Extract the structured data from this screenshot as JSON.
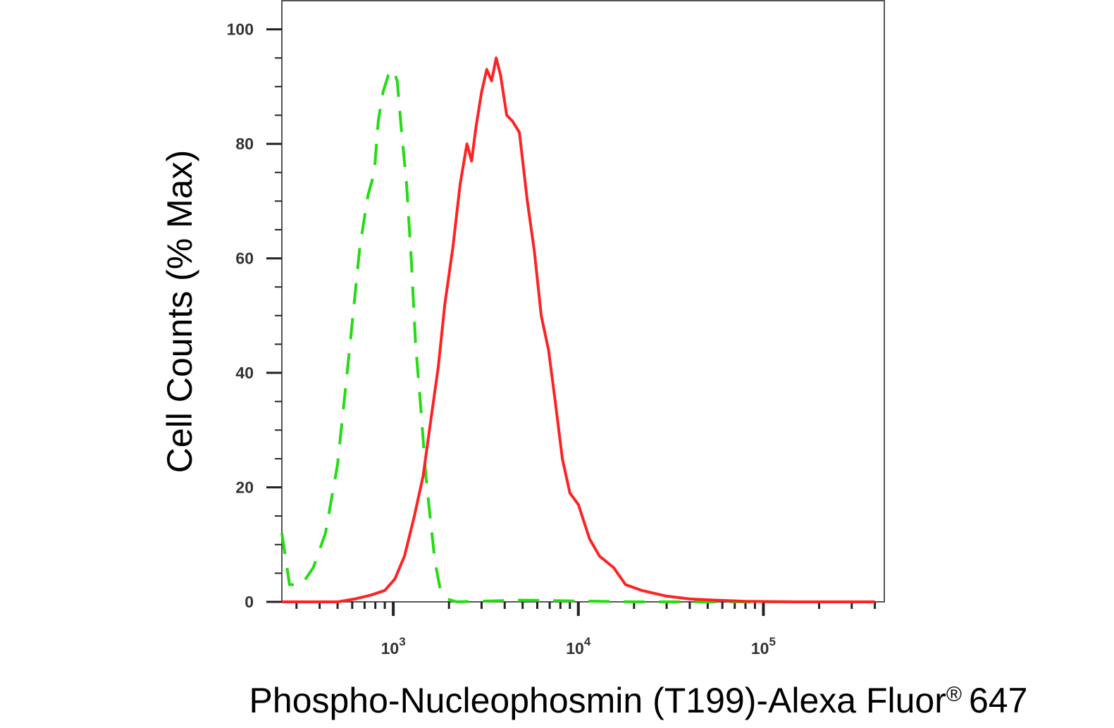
{
  "chart_data": {
    "type": "line",
    "xlabel": "Phospho-Nucleophosmin (T199)-Alexa Fluor",
    "xlabel_mark": "®",
    "xlabel_tail": "647",
    "ylabel": "Cell Counts (% Max)",
    "x_scale": "log",
    "xlim": [
      250,
      450000
    ],
    "ylim": [
      0,
      105
    ],
    "y_ticks": [
      0,
      20,
      40,
      60,
      80,
      100
    ],
    "y_tick_labels": [
      "0",
      "20",
      "40",
      "60",
      "80",
      "100"
    ],
    "x_ticks": [
      1000,
      10000,
      100000
    ],
    "x_tick_labels": [
      {
        "base": "10",
        "exp": "3"
      },
      {
        "base": "10",
        "exp": "4"
      },
      {
        "base": "10",
        "exp": "5"
      }
    ],
    "grid": false,
    "series": [
      {
        "style": "dashed",
        "color": "#22dd11",
        "points": [
          [
            250,
            12
          ],
          [
            275,
            3
          ],
          [
            320,
            3
          ],
          [
            370,
            6
          ],
          [
            430,
            12
          ],
          [
            500,
            24
          ],
          [
            580,
            44
          ],
          [
            660,
            62
          ],
          [
            730,
            71
          ],
          [
            790,
            75
          ],
          [
            830,
            84
          ],
          [
            880,
            89
          ],
          [
            940,
            92
          ],
          [
            1000,
            93
          ],
          [
            1050,
            91
          ],
          [
            1110,
            82
          ],
          [
            1180,
            73
          ],
          [
            1250,
            60
          ],
          [
            1320,
            45
          ],
          [
            1400,
            35
          ],
          [
            1500,
            22
          ],
          [
            1580,
            15
          ],
          [
            1680,
            7
          ],
          [
            1800,
            2
          ],
          [
            1950,
            0.5
          ],
          [
            2200,
            0
          ],
          [
            5000,
            0.3
          ],
          [
            20000,
            0
          ],
          [
            100000,
            0
          ],
          [
            400000,
            0
          ]
        ]
      },
      {
        "style": "solid",
        "color": "#ff2222",
        "points": [
          [
            250,
            0
          ],
          [
            500,
            0
          ],
          [
            620,
            0.5
          ],
          [
            760,
            1.2
          ],
          [
            900,
            2
          ],
          [
            1020,
            4
          ],
          [
            1150,
            8
          ],
          [
            1300,
            15
          ],
          [
            1450,
            22
          ],
          [
            1600,
            32
          ],
          [
            1750,
            41
          ],
          [
            1900,
            52
          ],
          [
            2100,
            62
          ],
          [
            2300,
            73
          ],
          [
            2500,
            80
          ],
          [
            2650,
            77
          ],
          [
            2800,
            83
          ],
          [
            3000,
            89
          ],
          [
            3200,
            93
          ],
          [
            3400,
            91
          ],
          [
            3600,
            95
          ],
          [
            3800,
            92
          ],
          [
            4100,
            85
          ],
          [
            4400,
            84
          ],
          [
            4800,
            82
          ],
          [
            5300,
            70
          ],
          [
            5800,
            61
          ],
          [
            6300,
            50
          ],
          [
            6900,
            44
          ],
          [
            7500,
            35
          ],
          [
            8200,
            25
          ],
          [
            9000,
            19
          ],
          [
            10000,
            17
          ],
          [
            11500,
            11
          ],
          [
            13000,
            8
          ],
          [
            15500,
            6
          ],
          [
            18000,
            3
          ],
          [
            22000,
            2
          ],
          [
            30000,
            1
          ],
          [
            40000,
            0.5
          ],
          [
            55000,
            0.3
          ],
          [
            80000,
            0.1
          ],
          [
            150000,
            0
          ],
          [
            400000,
            0
          ]
        ]
      }
    ]
  }
}
